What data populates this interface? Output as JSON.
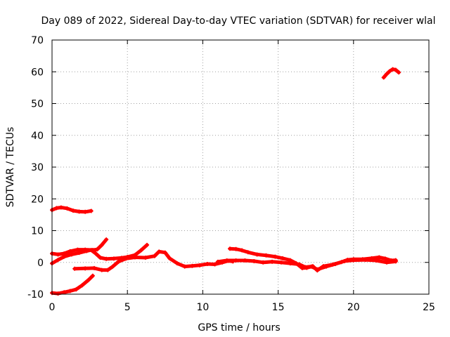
{
  "chart_data": {
    "type": "scatter",
    "title": "Day 089 of 2022, Sidereal Day-to-day VTEC variation (SDTVAR) for receiver wlal",
    "xlabel": "GPS time / hours",
    "ylabel": "SDTVAR / TECUs",
    "xlim": [
      0,
      25
    ],
    "ylim": [
      -10,
      70
    ],
    "xticks": [
      "0",
      "5",
      "10",
      "15",
      "20",
      "25"
    ],
    "yticks": [
      "-10",
      "0",
      "10",
      "20",
      "30",
      "40",
      "50",
      "60",
      "70"
    ],
    "grid": true,
    "color": "#ff0000",
    "series": [
      {
        "name": "s1",
        "points": [
          [
            0,
            16.5
          ],
          [
            0.3,
            17.1
          ],
          [
            0.6,
            17.3
          ],
          [
            1.0,
            17.0
          ],
          [
            1.4,
            16.3
          ],
          [
            1.8,
            16.0
          ],
          [
            2.2,
            15.9
          ],
          [
            2.6,
            16.2
          ]
        ]
      },
      {
        "name": "s2",
        "points": [
          [
            0,
            -9.6
          ],
          [
            0.4,
            -9.8
          ],
          [
            0.8,
            -9.4
          ],
          [
            1.2,
            -9.0
          ],
          [
            1.6,
            -8.5
          ],
          [
            2.0,
            -7.2
          ],
          [
            2.4,
            -5.6
          ],
          [
            2.7,
            -4.2
          ]
        ]
      },
      {
        "name": "s3",
        "points": [
          [
            0,
            2.8
          ],
          [
            0.4,
            2.5
          ],
          [
            0.8,
            2.8
          ],
          [
            1.2,
            3.5
          ],
          [
            1.7,
            4.0
          ],
          [
            2.2,
            4.0
          ],
          [
            2.7,
            3.9
          ],
          [
            3.0,
            4.1
          ],
          [
            3.3,
            5.5
          ],
          [
            3.6,
            7.2
          ]
        ]
      },
      {
        "name": "s4",
        "points": [
          [
            0,
            -0.3
          ],
          [
            0.4,
            0.8
          ],
          [
            0.8,
            1.8
          ],
          [
            1.3,
            2.5
          ],
          [
            1.8,
            3.0
          ],
          [
            2.3,
            3.6
          ],
          [
            2.6,
            3.9
          ],
          [
            2.9,
            2.8
          ],
          [
            3.2,
            1.5
          ],
          [
            3.6,
            1.1
          ],
          [
            4.1,
            1.2
          ],
          [
            4.6,
            1.4
          ],
          [
            5.0,
            1.7
          ],
          [
            5.5,
            2.3
          ],
          [
            5.9,
            3.8
          ],
          [
            6.3,
            5.5
          ]
        ]
      },
      {
        "name": "s5",
        "points": [
          [
            1.5,
            -2.0
          ],
          [
            2.2,
            -1.9
          ],
          [
            2.8,
            -1.8
          ],
          [
            3.3,
            -2.4
          ],
          [
            3.7,
            -2.4
          ],
          [
            4.0,
            -1.4
          ],
          [
            4.4,
            0.2
          ],
          [
            4.9,
            1.2
          ],
          [
            5.5,
            1.6
          ],
          [
            6.2,
            1.5
          ],
          [
            6.8,
            2.0
          ],
          [
            7.1,
            3.4
          ],
          [
            7.5,
            3.1
          ],
          [
            7.8,
            1.3
          ],
          [
            8.3,
            -0.3
          ],
          [
            8.8,
            -1.3
          ],
          [
            9.3,
            -1.1
          ],
          [
            9.8,
            -0.9
          ],
          [
            10.3,
            -0.5
          ],
          [
            10.8,
            -0.6
          ],
          [
            11.3,
            0.0
          ],
          [
            11.7,
            0.5
          ],
          [
            12.0,
            0.3
          ]
        ]
      },
      {
        "name": "s6",
        "points": [
          [
            11.8,
            4.3
          ],
          [
            12.2,
            4.2
          ],
          [
            12.6,
            3.8
          ],
          [
            13.0,
            3.2
          ],
          [
            13.6,
            2.5
          ],
          [
            14.2,
            2.2
          ],
          [
            14.8,
            1.8
          ],
          [
            15.3,
            1.3
          ],
          [
            15.8,
            0.7
          ],
          [
            16.2,
            -0.3
          ],
          [
            16.6,
            -1.8
          ],
          [
            16.9,
            -1.7
          ],
          [
            17.3,
            -1.2
          ],
          [
            17.6,
            -2.5
          ],
          [
            18.0,
            -1.2
          ],
          [
            18.6,
            -0.7
          ],
          [
            19.2,
            0.1
          ],
          [
            19.6,
            0.8
          ],
          [
            20.0,
            1.0
          ],
          [
            20.6,
            1.0
          ],
          [
            21.2,
            1.3
          ],
          [
            21.7,
            1.6
          ],
          [
            22.1,
            1.2
          ],
          [
            22.5,
            0.6
          ],
          [
            22.8,
            0.7
          ]
        ]
      },
      {
        "name": "s7",
        "points": [
          [
            11.0,
            0.2
          ],
          [
            11.6,
            0.6
          ],
          [
            12.2,
            0.6
          ],
          [
            12.8,
            0.6
          ],
          [
            13.4,
            0.4
          ],
          [
            14.0,
            0.0
          ],
          [
            14.6,
            0.2
          ],
          [
            15.2,
            0.0
          ],
          [
            15.8,
            -0.3
          ],
          [
            16.4,
            -0.6
          ],
          [
            16.8,
            -1.5
          ],
          [
            17.2,
            -1.3
          ],
          [
            17.6,
            -2.2
          ],
          [
            18.2,
            -1.3
          ],
          [
            18.8,
            -0.5
          ],
          [
            19.4,
            0.4
          ],
          [
            20.0,
            0.7
          ],
          [
            20.8,
            0.8
          ],
          [
            21.5,
            0.6
          ],
          [
            22.2,
            0.0
          ],
          [
            22.8,
            0.3
          ]
        ]
      },
      {
        "name": "s8",
        "points": [
          [
            22.0,
            58.2
          ],
          [
            22.2,
            59.3
          ],
          [
            22.4,
            60.2
          ],
          [
            22.6,
            60.8
          ],
          [
            22.8,
            60.6
          ],
          [
            23.0,
            59.8
          ]
        ]
      }
    ]
  }
}
